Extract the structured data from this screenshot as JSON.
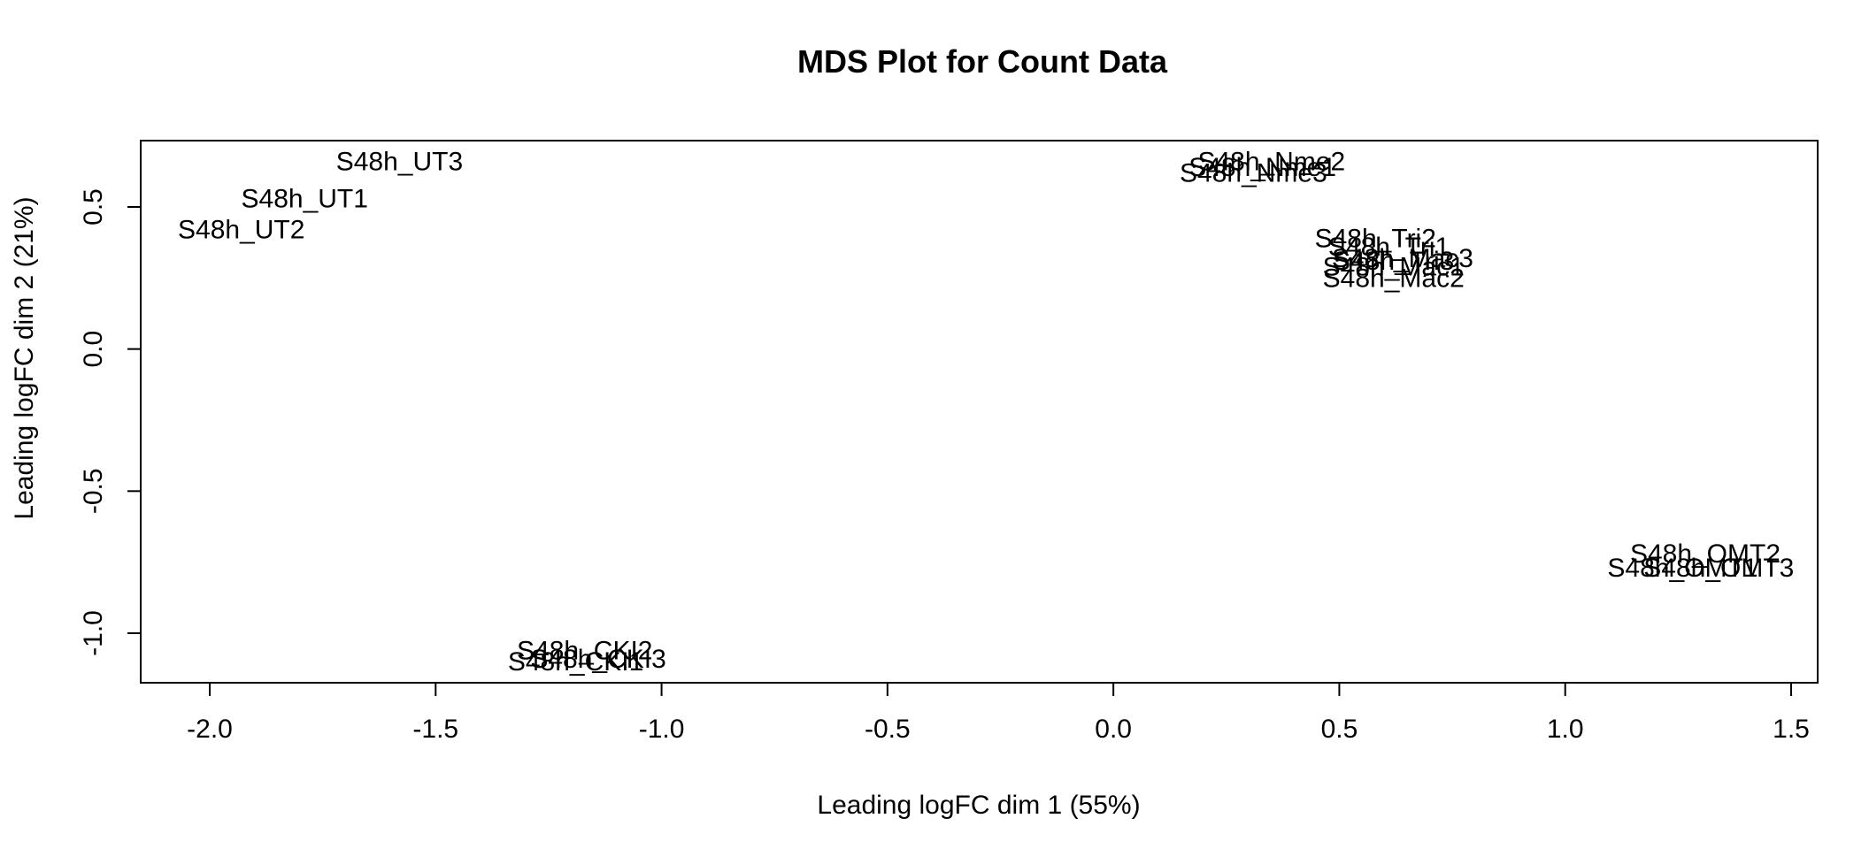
{
  "chart_data": {
    "type": "scatter",
    "title": "MDS Plot for Count Data",
    "xlabel": "Leading logFC dim 1 (55%)",
    "ylabel": "Leading logFC dim 2 (21%)",
    "xlim": [
      -2.15,
      1.55
    ],
    "ylim": [
      -1.17,
      0.73
    ],
    "x_ticks": [
      -2.0,
      -1.5,
      -1.0,
      -0.5,
      0.0,
      0.5,
      1.0,
      1.5
    ],
    "x_tick_labels": [
      "-2.0",
      "-1.5",
      "-1.0",
      "-0.5",
      "0.0",
      "0.5",
      "1.0",
      "1.5"
    ],
    "y_ticks": [
      -1.0,
      -0.5,
      0.0,
      0.5
    ],
    "y_tick_labels": [
      "-1.0",
      "-0.5",
      "0.0",
      "0.5"
    ],
    "grid": false,
    "points": [
      {
        "label": "S48h_UT3",
        "x": -1.58,
        "y": 0.66
      },
      {
        "label": "S48h_UT1",
        "x": -1.79,
        "y": 0.53
      },
      {
        "label": "S48h_UT2",
        "x": -1.93,
        "y": 0.42
      },
      {
        "label": "S48h_Nme2",
        "x": 0.35,
        "y": 0.66
      },
      {
        "label": "S48h_Nme1",
        "x": 0.33,
        "y": 0.64
      },
      {
        "label": "S48h_Nme3",
        "x": 0.31,
        "y": 0.62
      },
      {
        "label": "S48h_Tri2",
        "x": 0.58,
        "y": 0.39
      },
      {
        "label": "S48h_Tri1",
        "x": 0.61,
        "y": 0.36
      },
      {
        "label": "S48h_Mac3",
        "x": 0.64,
        "y": 0.32
      },
      {
        "label": "S48h_Tri3",
        "x": 0.62,
        "y": 0.31
      },
      {
        "label": "S48h_Mac1",
        "x": 0.62,
        "y": 0.29
      },
      {
        "label": "S48h_Mac2",
        "x": 0.62,
        "y": 0.25
      },
      {
        "label": "S48h_OMT2",
        "x": 1.31,
        "y": -0.72
      },
      {
        "label": "S48h_OMT1",
        "x": 1.26,
        "y": -0.77
      },
      {
        "label": "S48h_OMT3",
        "x": 1.34,
        "y": -0.77
      },
      {
        "label": "S48h_CKI2",
        "x": -1.17,
        "y": -1.06
      },
      {
        "label": "S48h_CKI3",
        "x": -1.14,
        "y": -1.09
      },
      {
        "label": "S48h_CKI1",
        "x": -1.19,
        "y": -1.1
      }
    ]
  }
}
